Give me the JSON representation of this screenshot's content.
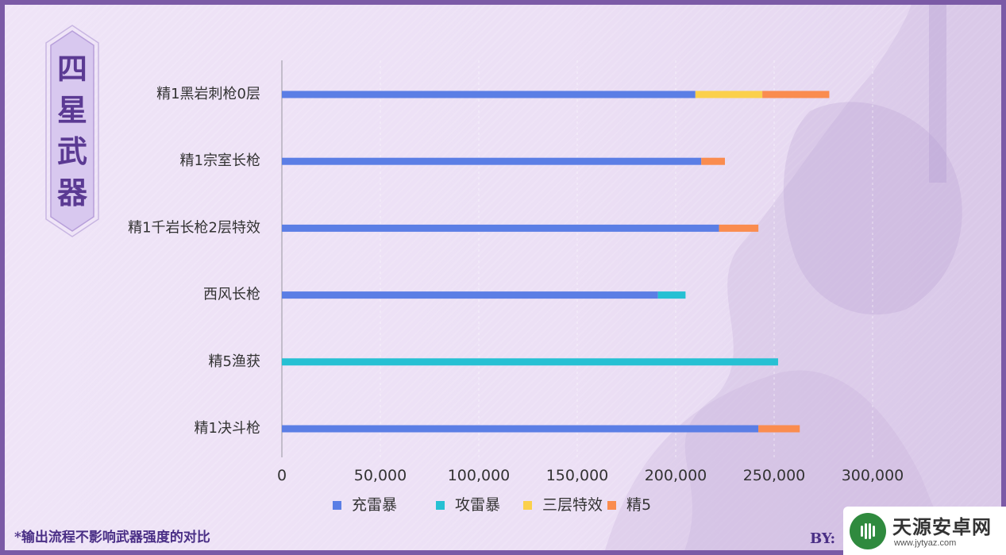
{
  "badge": {
    "chars": [
      "四",
      "星",
      "武",
      "器"
    ]
  },
  "footnote": "*输出流程不影响武器强度的对比",
  "byline": "BY:",
  "watermark": {
    "title": "天源安卓网",
    "url": "www.jytyaz.com"
  },
  "colors": {
    "frame": "#7b5aa6",
    "series": [
      "#5b7ee5",
      "#26c0d3",
      "#fbd04b",
      "#fa8c4f"
    ],
    "axis": "#b4b0bc",
    "label": "#333333"
  },
  "chart_data": {
    "type": "bar",
    "orientation": "horizontal",
    "stacked": true,
    "categories": [
      "精1黑岩刺枪0层",
      "精1宗室长枪",
      "精1千岩长枪2层特效",
      "西风长枪",
      "精5渔获",
      "精1决斗枪"
    ],
    "series": [
      {
        "name": "充雷暴",
        "values": [
          210000,
          213000,
          222000,
          191000,
          0,
          242000
        ]
      },
      {
        "name": "攻雷暴",
        "values": [
          0,
          0,
          0,
          14000,
          252000,
          0
        ]
      },
      {
        "name": "三层特效",
        "values": [
          34000,
          0,
          0,
          0,
          0,
          0
        ]
      },
      {
        "name": "精5",
        "values": [
          34000,
          12000,
          20000,
          0,
          0,
          21000
        ]
      }
    ],
    "x_ticks": [
      0,
      50000,
      100000,
      150000,
      200000,
      250000,
      300000
    ],
    "x_tick_labels": [
      "0",
      "50,000",
      "100,000",
      "150,000",
      "200,000",
      "250,000",
      "300,000"
    ],
    "xlim": [
      0,
      300000
    ],
    "legend_position": "bottom",
    "grid": false
  }
}
